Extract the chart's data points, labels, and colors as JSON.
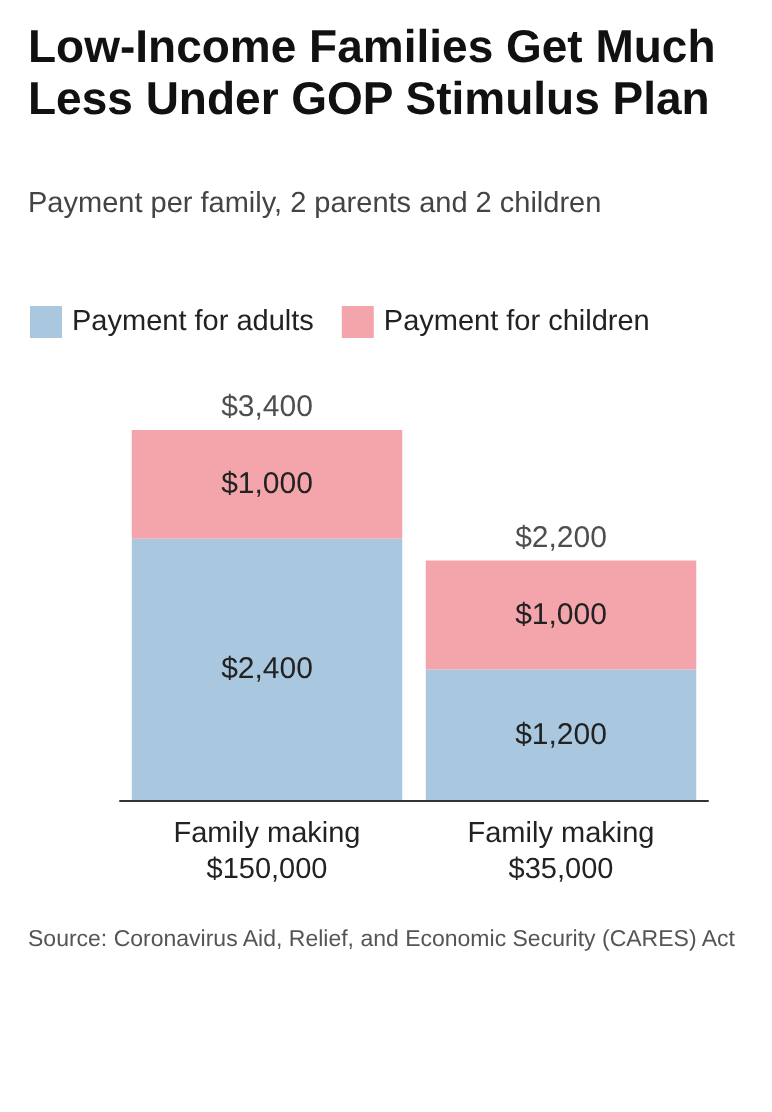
{
  "chart_data": {
    "type": "bar",
    "title": "Low-Income Families Get Much Less Under GOP Stimulus Plan",
    "subtitle": "Payment per family, 2 parents and 2 children",
    "categories": [
      "Family making\n$150,000",
      "Family making\n$35,000"
    ],
    "series": [
      {
        "name": "Payment for adults",
        "color": "#a9c8e0",
        "values": [
          2400,
          1200
        ],
        "value_labels": [
          "$2,400",
          "$1,200"
        ]
      },
      {
        "name": "Payment for children",
        "color": "#f4a5ab",
        "values": [
          1000,
          1000
        ],
        "value_labels": [
          "$1,000",
          "$1,000"
        ]
      }
    ],
    "stacked": true,
    "totals": [
      "$3,400",
      "$2,200"
    ],
    "legend": "top left",
    "grid": false,
    "tick_labels": "x",
    "annotations": [
      "Source: Coronavirus Aid, Relief, and Economic Security (CARES) Act"
    ]
  }
}
